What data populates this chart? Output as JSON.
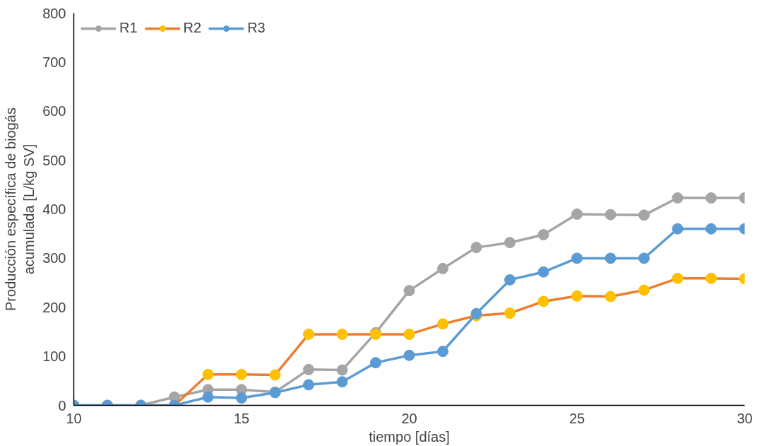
{
  "chart_data": {
    "type": "line",
    "xlabel": "tiempo [días]",
    "ylabel": "Producción específica de biogás\nacumulada [L/kg SV]",
    "x": [
      10,
      11,
      12,
      13,
      14,
      15,
      16,
      17,
      18,
      19,
      20,
      21,
      22,
      23,
      24,
      25,
      26,
      27,
      28,
      29,
      30
    ],
    "series": [
      {
        "name": "R1",
        "color": "#a5a5a5",
        "values": [
          0,
          0,
          0,
          17,
          32,
          32,
          27,
          73,
          72,
          148,
          234,
          279,
          322,
          332,
          348,
          390,
          389,
          388,
          423,
          423,
          423
        ]
      },
      {
        "name": "R2",
        "color": "#ed7d31",
        "colors": [
          "#ffc000",
          "#ffc000",
          "#ffc000",
          "#ffc000",
          "#ffc000",
          "#ffc000",
          "#ffc000",
          "#ffc000",
          "#ffc000",
          "#ffc000",
          "#ffc000",
          "#ffc000",
          "#ffc000",
          "#ffc000",
          "#ffc000",
          "#ffc000",
          "#ffc000",
          "#ffc000",
          "#ffc000",
          "#ffc000",
          "#ffc000"
        ],
        "values": [
          null,
          null,
          0,
          0,
          63,
          63,
          62,
          145,
          145,
          145,
          145,
          166,
          183,
          188,
          212,
          223,
          222,
          235,
          259,
          259,
          258
        ]
      },
      {
        "name": "R3",
        "color": "#5b9bd5",
        "values": [
          0,
          0,
          0,
          0,
          17,
          15,
          26,
          42,
          48,
          87,
          102,
          110,
          187,
          256,
          272,
          300,
          300,
          300,
          360,
          360,
          360
        ]
      }
    ],
    "xlim": [
      10,
      30
    ],
    "xticks": [
      10,
      15,
      20,
      25,
      30
    ],
    "ylim": [
      0,
      800
    ],
    "yticks": [
      0,
      100,
      200,
      300,
      400,
      500,
      600,
      700,
      800
    ],
    "grid": false,
    "legend": "top left",
    "marker": "circle",
    "line_style": "solid"
  }
}
